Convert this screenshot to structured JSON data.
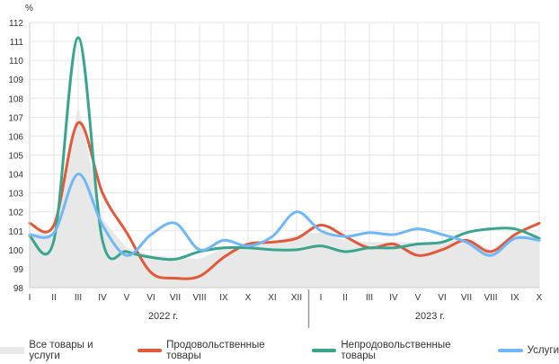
{
  "chart_data": {
    "type": "line",
    "unit_label": "%",
    "ylim": [
      98,
      112
    ],
    "yticks": [
      98,
      99,
      100,
      101,
      102,
      103,
      104,
      105,
      106,
      107,
      108,
      109,
      110,
      111,
      112
    ],
    "categories": [
      "I",
      "II",
      "III",
      "IV",
      "V",
      "VI",
      "VII",
      "VIII",
      "IX",
      "X",
      "XI",
      "XII",
      "I",
      "II",
      "III",
      "IV",
      "V",
      "VI",
      "VII",
      "VIII",
      "IX",
      "X"
    ],
    "year_groups": [
      {
        "label": "2022 г.",
        "count": 12
      },
      {
        "label": "2023 г.",
        "count": 10
      }
    ],
    "grid": true,
    "legend_position": "bottom",
    "series": [
      {
        "name": "Все товары и услуги",
        "kind": "area",
        "color": "#e8e8e8",
        "values": [
          100.9,
          100.8,
          107.6,
          101.6,
          100.1,
          99.7,
          99.6,
          99.5,
          100.1,
          100.2,
          100.4,
          100.8,
          100.9,
          100.5,
          100.4,
          100.4,
          100.4,
          100.4,
          100.6,
          100.0,
          100.8,
          100.7
        ]
      },
      {
        "name": "Продовольственные товары",
        "kind": "line",
        "color": "#e05a3a",
        "values": [
          101.4,
          101.3,
          106.7,
          103.0,
          100.9,
          98.8,
          98.5,
          98.6,
          99.6,
          100.3,
          100.4,
          100.6,
          101.3,
          100.7,
          100.1,
          100.3,
          99.7,
          100.0,
          100.5,
          99.9,
          100.8,
          101.4
        ]
      },
      {
        "name": "Непродовольственные товары",
        "kind": "line",
        "color": "#3aa58c",
        "values": [
          100.7,
          100.5,
          111.2,
          100.5,
          99.9,
          99.6,
          99.5,
          99.9,
          100.1,
          100.1,
          100.0,
          100.0,
          100.2,
          99.9,
          100.1,
          100.1,
          100.3,
          100.4,
          100.9,
          101.1,
          101.1,
          100.6
        ]
      },
      {
        "name": "Услуги",
        "kind": "line",
        "color": "#6fb7f7",
        "values": [
          100.8,
          100.9,
          104.0,
          101.3,
          99.7,
          100.8,
          101.4,
          100.0,
          100.5,
          100.2,
          100.7,
          102.0,
          101.0,
          100.7,
          100.9,
          100.8,
          101.1,
          100.8,
          100.4,
          99.7,
          100.6,
          100.5
        ]
      }
    ]
  }
}
